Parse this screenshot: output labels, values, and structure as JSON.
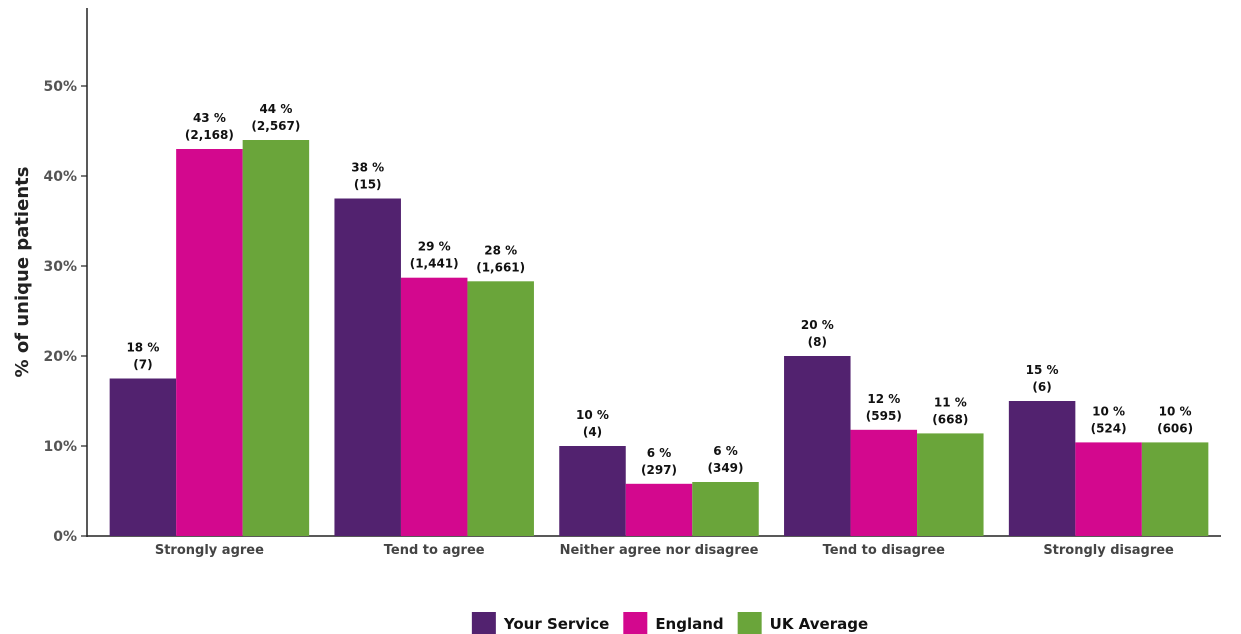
{
  "chart_data": {
    "type": "bar",
    "ylabel": "% of unique patients",
    "xlabel": "",
    "ylim": [
      0,
      0.5
    ],
    "yticks": [
      0,
      0.1,
      0.2,
      0.3,
      0.4,
      0.5
    ],
    "ytick_labels": [
      "0%",
      "10%",
      "20%",
      "30%",
      "40%",
      "50%"
    ],
    "categories": [
      "Strongly agree",
      "Tend to agree",
      "Neither agree nor disagree",
      "Tend to disagree",
      "Strongly disagree"
    ],
    "series": [
      {
        "name": "Your Service",
        "color": "#52226f",
        "values": [
          0.175,
          0.375,
          0.1,
          0.2,
          0.15
        ],
        "labels": [
          "18 %",
          "38 %",
          "10 %",
          "20 %",
          "15 %"
        ],
        "counts": [
          "(7)",
          "(15)",
          "(4)",
          "(8)",
          "(6)"
        ]
      },
      {
        "name": "England",
        "color": "#d3088e",
        "values": [
          0.43,
          0.287,
          0.058,
          0.118,
          0.104
        ],
        "labels": [
          "43 %",
          "29 %",
          "6 %",
          "12 %",
          "10 %"
        ],
        "counts": [
          "(2,168)",
          "(1,441)",
          "(297)",
          "(595)",
          "(524)"
        ]
      },
      {
        "name": "UK Average",
        "color": "#6aa53a",
        "values": [
          0.44,
          0.283,
          0.06,
          0.114,
          0.104
        ],
        "labels": [
          "44 %",
          "28 %",
          "6 %",
          "11 %",
          "10 %"
        ],
        "counts": [
          "(2,567)",
          "(1,661)",
          "(349)",
          "(668)",
          "(606)"
        ]
      }
    ],
    "legend": "bottom-center",
    "grid": false
  }
}
